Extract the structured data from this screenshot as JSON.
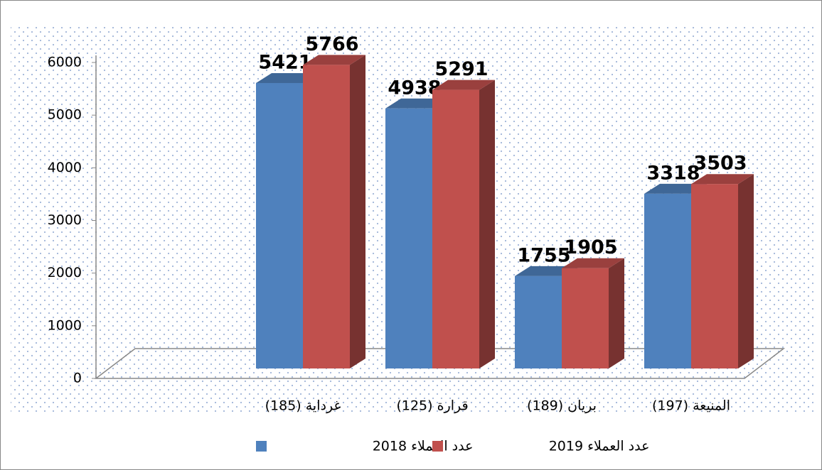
{
  "chart_data": {
    "type": "bar",
    "categories": [
      "غرداية (185)",
      "قرارة (125)",
      "بريان (189)",
      "المنيعة (197)"
    ],
    "series": [
      {
        "name": "عدد العملاء 2018",
        "color": "#4f81bd",
        "values": [
          5421,
          4938,
          1755,
          3318
        ]
      },
      {
        "name": "عدد العملاء 2019",
        "color": "#c0504d",
        "values": [
          5766,
          5291,
          1905,
          3503
        ]
      }
    ],
    "ylim": [
      0,
      6000
    ],
    "yticks": [
      0,
      1000,
      2000,
      3000,
      4000,
      5000,
      6000
    ],
    "legend": "bottom"
  }
}
